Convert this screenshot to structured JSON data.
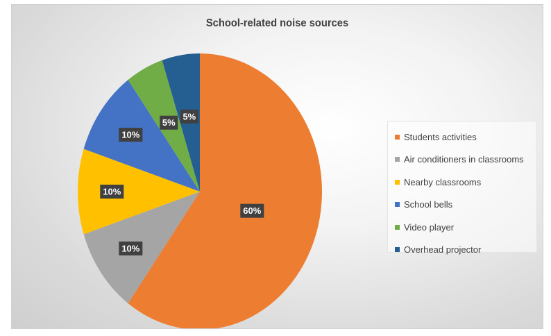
{
  "chart_data": {
    "type": "pie",
    "title": "School-related noise sources",
    "slices": [
      {
        "label": "Students activities",
        "value": 60,
        "display": "60%",
        "color": "#ED7D31"
      },
      {
        "label": "Air conditioners in classrooms",
        "value": 10,
        "display": "10%",
        "color": "#A5A5A5"
      },
      {
        "label": "Nearby classrooms",
        "value": 10,
        "display": "10%",
        "color": "#FFC000"
      },
      {
        "label": "School bells",
        "value": 10,
        "display": "10%",
        "color": "#4472C4"
      },
      {
        "label": "Video player",
        "value": 5,
        "display": "5%",
        "color": "#70AD47"
      },
      {
        "label": "Overhead projector",
        "value": 5,
        "display": "5%",
        "color": "#255E91"
      }
    ],
    "start_angle": "12 o'clock",
    "direction": "clockwise",
    "legend_position": "right"
  }
}
